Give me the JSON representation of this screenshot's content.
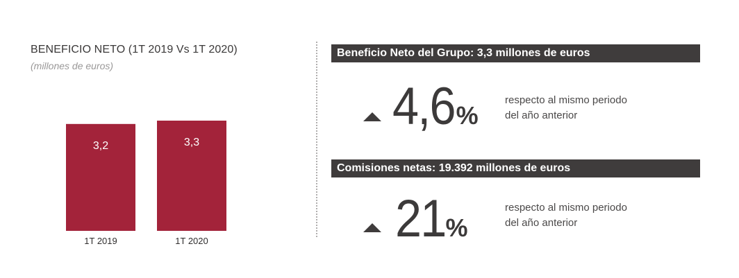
{
  "chart_data": {
    "type": "bar",
    "title": "BENEFICIO NETO (1T 2019 Vs 1T 2020)",
    "subtitle": "(millones de euros)",
    "categories": [
      "1T 2019",
      "1T 2020"
    ],
    "values": [
      3.2,
      3.3
    ],
    "value_labels": [
      "3,2",
      "3,3"
    ],
    "ylim": [
      0,
      3.3
    ],
    "grid": false,
    "bar_color": "#a3233a"
  },
  "kpis": [
    {
      "header": "Beneficio Neto del Grupo: 3,3 millones de euros",
      "value": "4,6",
      "unit": "%",
      "trend": "up",
      "desc_line1": "respecto al mismo periodo",
      "desc_line2": "del año anterior"
    },
    {
      "header": "Comisiones netas: 19.392 millones de euros",
      "value": "21",
      "unit": "%",
      "trend": "up",
      "desc_line1": "respecto al mismo periodo",
      "desc_line2": "del año anterior"
    }
  ],
  "colors": {
    "accent": "#a3233a",
    "header_bg": "#3f3c3c",
    "text": "#3c3a3a"
  }
}
